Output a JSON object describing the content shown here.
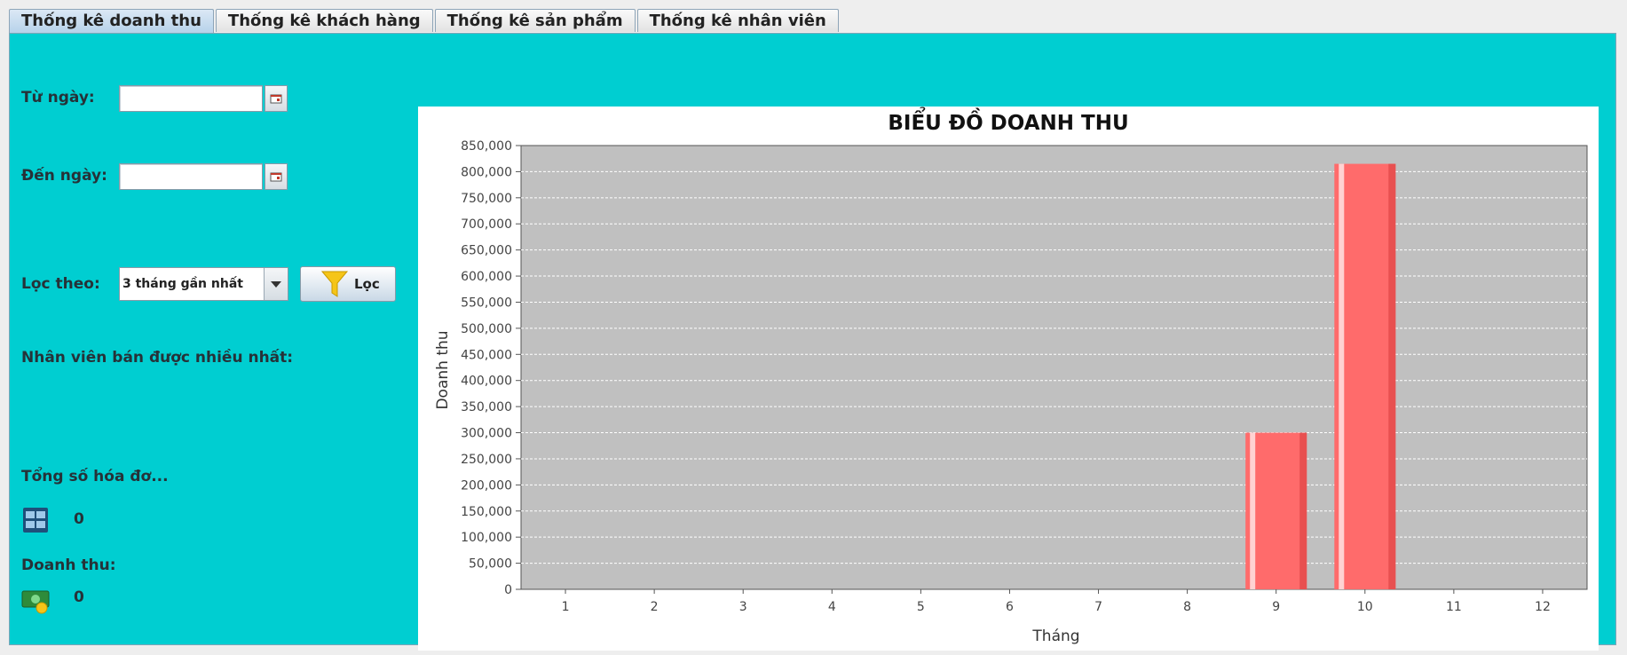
{
  "tabs": [
    {
      "label": "Thống kê doanh thu",
      "active": true
    },
    {
      "label": "Thống kê khách hàng",
      "active": false
    },
    {
      "label": "Thống kê sản phẩm",
      "active": false
    },
    {
      "label": "Thống kê nhân viên",
      "active": false
    }
  ],
  "filters": {
    "from_label": "Từ ngày:",
    "from_value": "",
    "to_label": "Đến ngày:",
    "to_value": "",
    "filter_by_label": "Lọc theo:",
    "filter_by_value": "3 tháng gần nhất",
    "filter_button_label": "Lọc"
  },
  "stats": {
    "top_employee_label": "Nhân viên bán được nhiều nhất:",
    "invoice_count_label": "Tổng số hóa đơ...",
    "invoice_count_value": "0",
    "revenue_label": "Doanh thu:",
    "revenue_value": "0"
  },
  "colors": {
    "panel_bg": "#00ced1",
    "plot_bg": "#c0c0c0",
    "bar": "#ff6b6b"
  },
  "chart_data": {
    "type": "bar",
    "title": "BIỂU ĐỒ DOANH THU",
    "xlabel": "Tháng",
    "ylabel": "Doanh thu",
    "categories": [
      "1",
      "2",
      "3",
      "4",
      "5",
      "6",
      "7",
      "8",
      "9",
      "10",
      "11",
      "12"
    ],
    "values": [
      0,
      0,
      0,
      0,
      0,
      0,
      0,
      0,
      300000,
      815000,
      0,
      0
    ],
    "ylim": [
      0,
      850000
    ],
    "yticks": [
      "0",
      "50,000",
      "100,000",
      "150,000",
      "200,000",
      "250,000",
      "300,000",
      "350,000",
      "400,000",
      "450,000",
      "500,000",
      "550,000",
      "600,000",
      "650,000",
      "700,000",
      "750,000",
      "800,000",
      "850,000"
    ],
    "grid": true,
    "legend": "none"
  }
}
